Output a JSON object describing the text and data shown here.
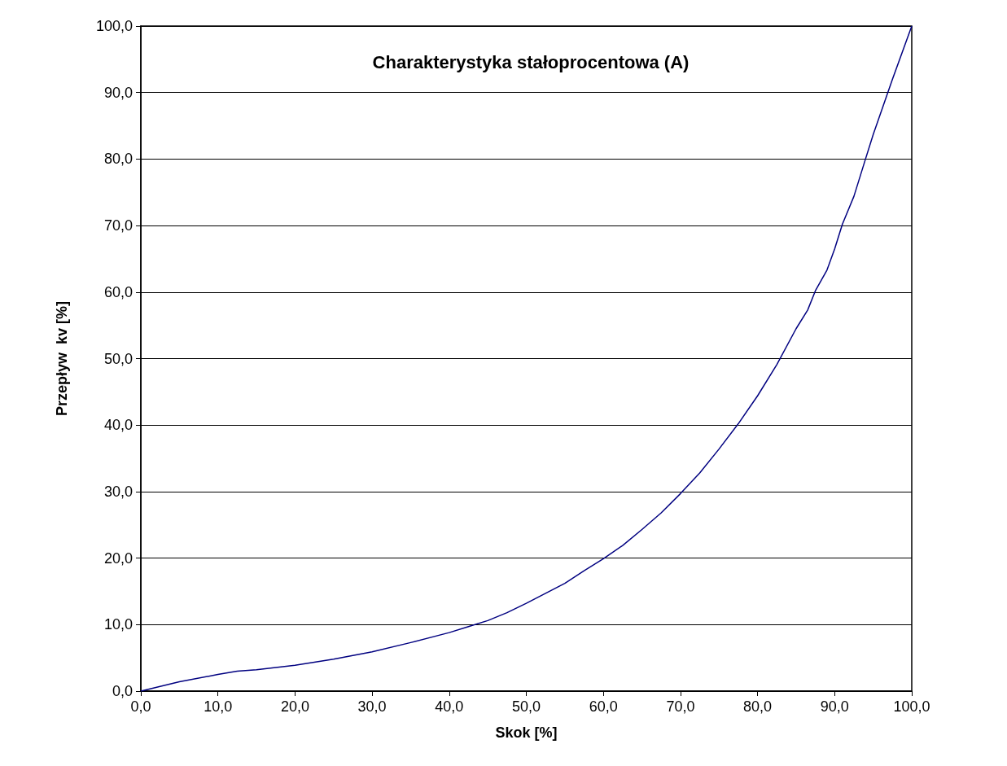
{
  "chart_data": {
    "type": "line",
    "title": "Charakterystyka stałoprocentowa (A)",
    "xlabel": "Skok [%]",
    "ylabel": "Przepływ  kv [%]",
    "series": [
      {
        "color": "#000080",
        "x": [
          0,
          5,
          10,
          12.5,
          15,
          20,
          25,
          30,
          35,
          40,
          42.5,
          45,
          47.5,
          50,
          52.5,
          55,
          57.5,
          60,
          62.5,
          65,
          67.5,
          70,
          72.5,
          75,
          77.5,
          80,
          82.5,
          85,
          86.5,
          87.5,
          89,
          90,
          91,
          92.5,
          94,
          95,
          97.5,
          100
        ],
        "values": [
          0,
          1.4,
          2.5,
          3.0,
          3.2,
          3.9,
          4.8,
          5.9,
          7.3,
          8.8,
          9.7,
          10.6,
          11.8,
          13.2,
          14.7,
          16.2,
          18.1,
          19.9,
          21.9,
          24.3,
          26.8,
          29.7,
          32.8,
          36.4,
          40.2,
          44.4,
          49.1,
          54.5,
          57.3,
          60.2,
          63.3,
          66.5,
          70.2,
          74.4,
          80.0,
          83.7,
          92.0,
          100
        ]
      }
    ],
    "xlim": [
      0,
      100
    ],
    "ylim": [
      0,
      100
    ],
    "xticks": [
      {
        "value": 0,
        "label": "0,0"
      },
      {
        "value": 10,
        "label": "10,0"
      },
      {
        "value": 20,
        "label": "20,0"
      },
      {
        "value": 30,
        "label": "30,0"
      },
      {
        "value": 40,
        "label": "40,0"
      },
      {
        "value": 50,
        "label": "50,0"
      },
      {
        "value": 60,
        "label": "60,0"
      },
      {
        "value": 70,
        "label": "70,0"
      },
      {
        "value": 80,
        "label": "80,0"
      },
      {
        "value": 90,
        "label": "90,0"
      },
      {
        "value": 100,
        "label": "100,0"
      }
    ],
    "yticks": [
      {
        "value": 0,
        "label": "0,0"
      },
      {
        "value": 10,
        "label": "10,0"
      },
      {
        "value": 20,
        "label": "20,0"
      },
      {
        "value": 30,
        "label": "30,0"
      },
      {
        "value": 40,
        "label": "40,0"
      },
      {
        "value": 50,
        "label": "50,0"
      },
      {
        "value": 60,
        "label": "60,0"
      },
      {
        "value": 70,
        "label": "70,0"
      },
      {
        "value": 80,
        "label": "80,0"
      },
      {
        "value": 90,
        "label": "90,0"
      },
      {
        "value": 100,
        "label": "100,0"
      }
    ],
    "grid": "y",
    "marker": "none",
    "line_style": "solid"
  }
}
